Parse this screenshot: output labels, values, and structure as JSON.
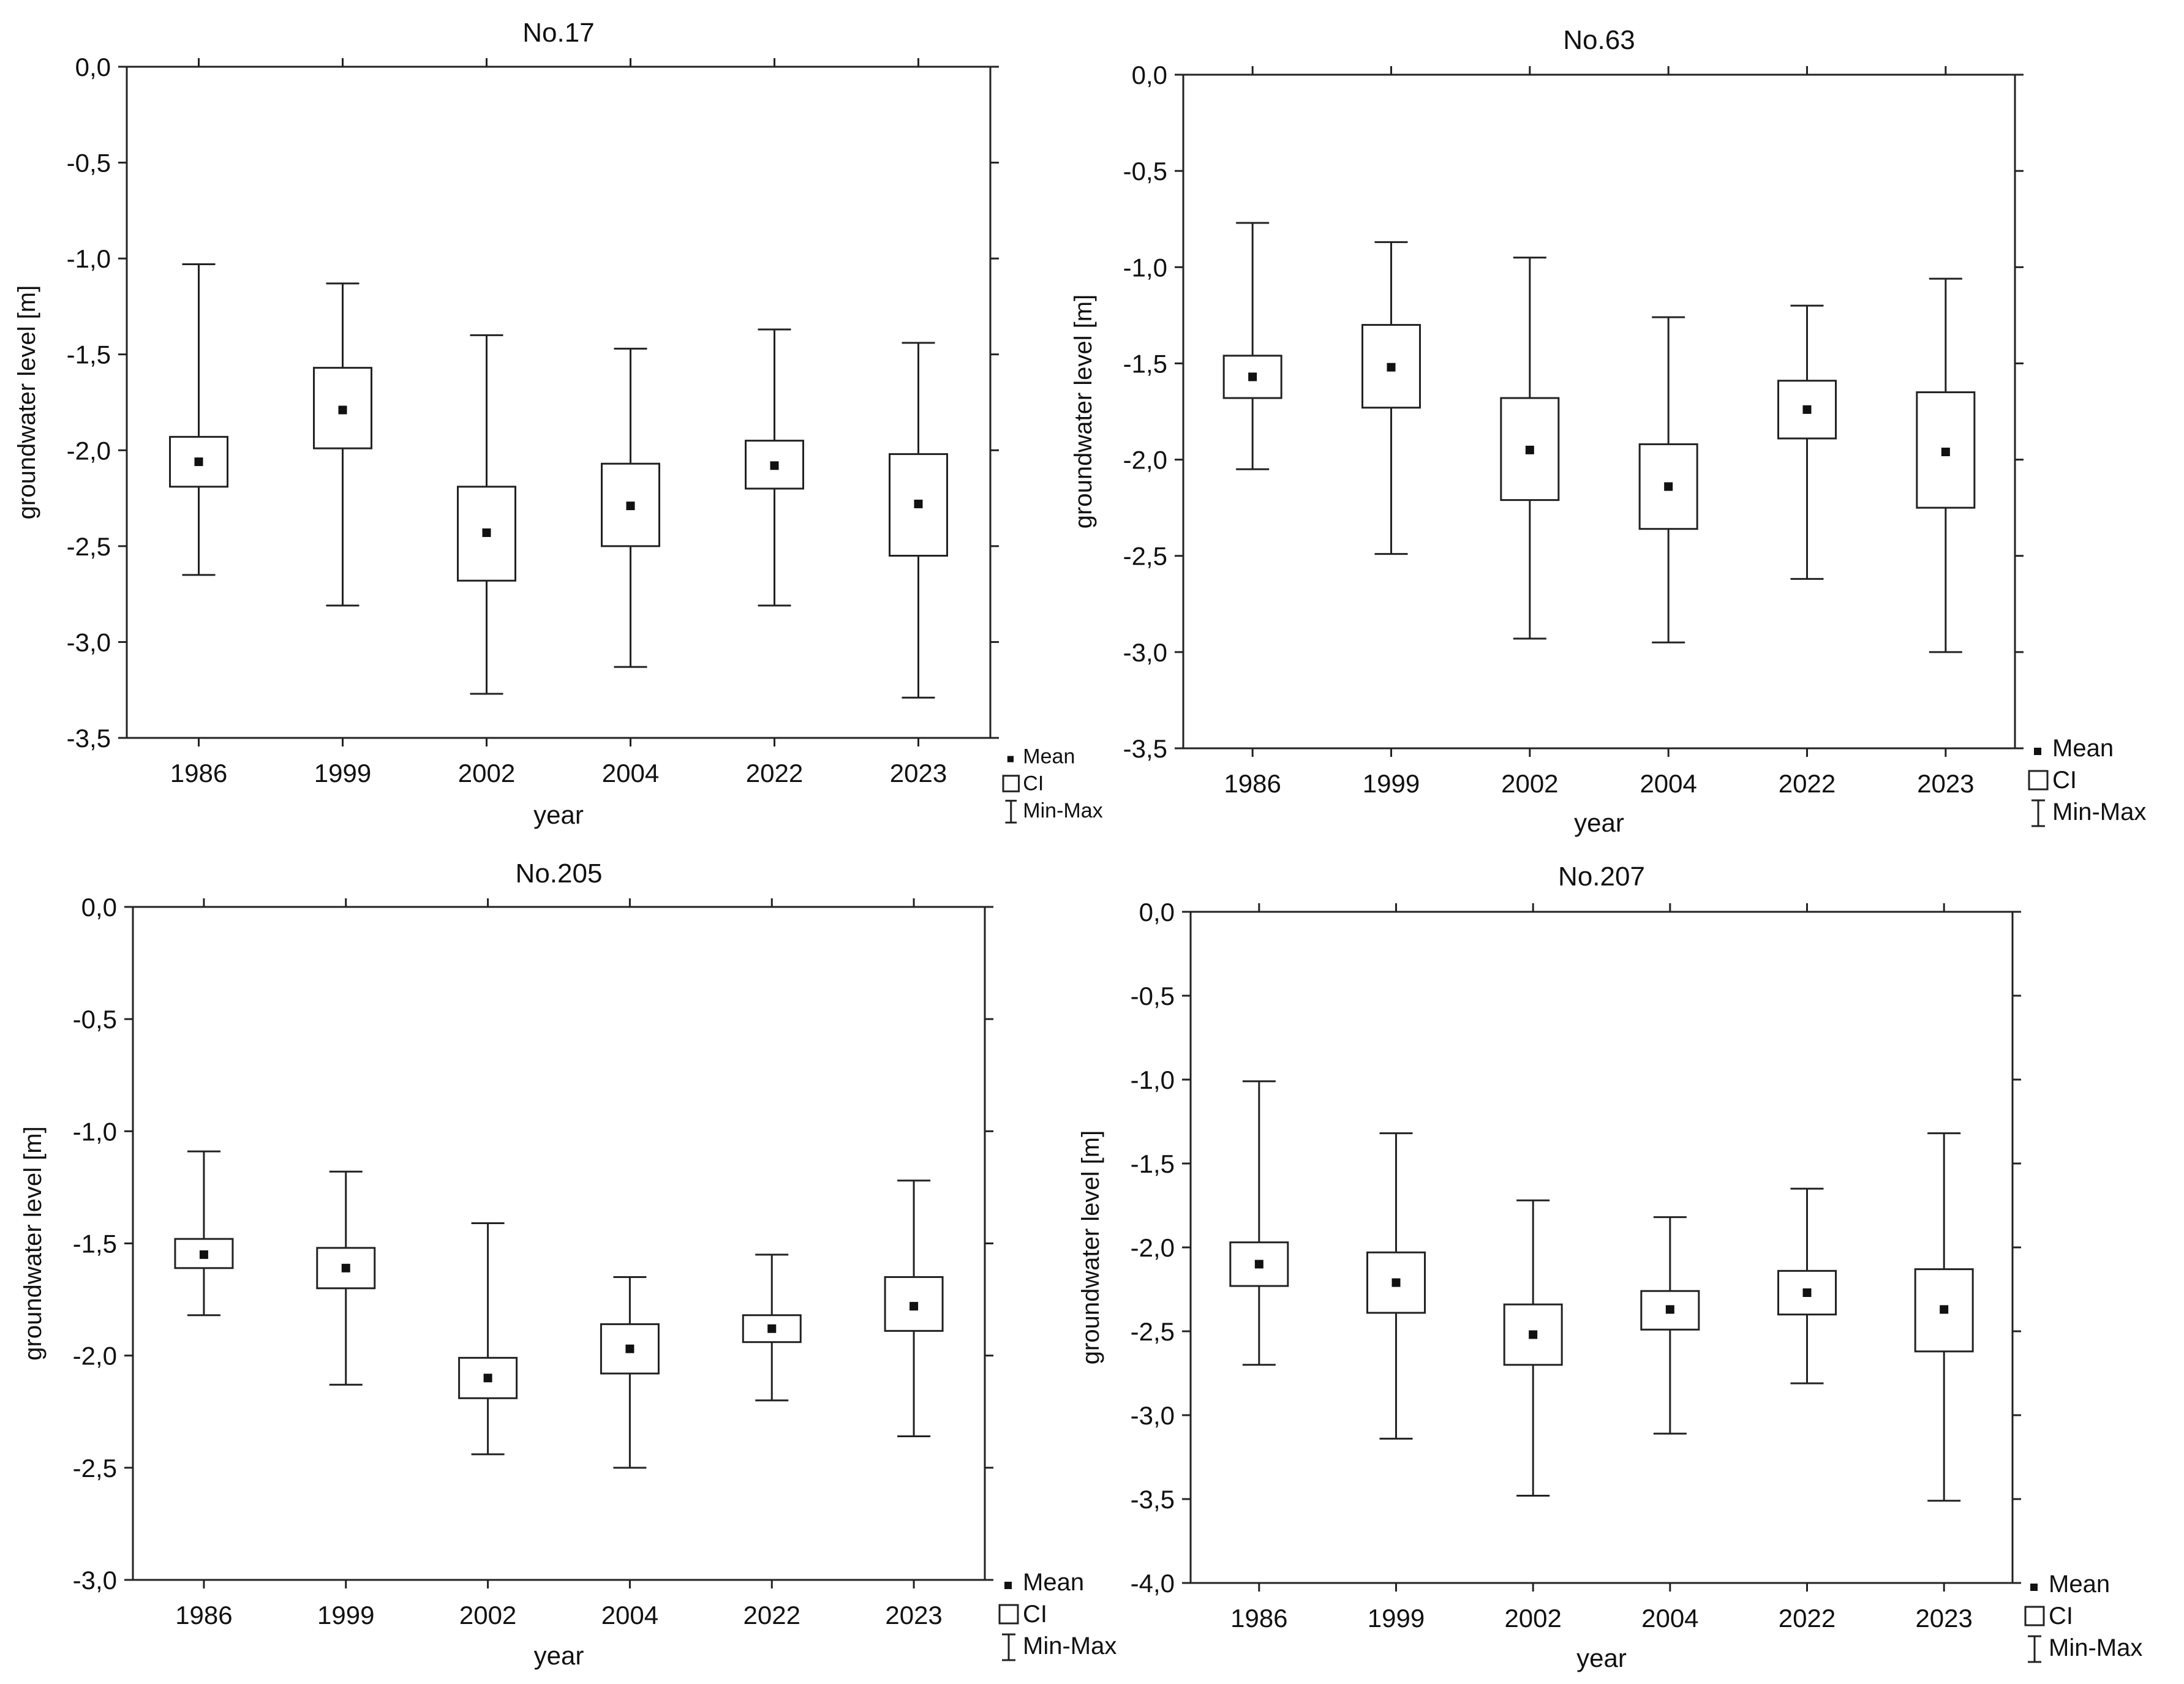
{
  "chart_data": [
    {
      "type": "box",
      "title": "No.17",
      "xlabel": "year",
      "ylabel": "groundwater level [m]",
      "categories": [
        "1986",
        "1999",
        "2002",
        "2004",
        "2022",
        "2023"
      ],
      "ylim": [
        -3.5,
        0.0
      ],
      "yticks": [
        "0,0",
        "-0,5",
        "-1,0",
        "-1,5",
        "-2,0",
        "-2,5",
        "-3,0",
        "-3,5"
      ],
      "grid": false,
      "legend": {
        "position": "right-bottom",
        "mean": "Mean",
        "ci": "CI",
        "minmax": "Min-Max"
      },
      "series": [
        {
          "mean": -2.06,
          "ci_low": -2.19,
          "ci_high": -1.93,
          "min": -2.65,
          "max": -1.03
        },
        {
          "mean": -1.79,
          "ci_low": -1.99,
          "ci_high": -1.57,
          "min": -2.81,
          "max": -1.13
        },
        {
          "mean": -2.43,
          "ci_low": -2.68,
          "ci_high": -2.19,
          "min": -3.27,
          "max": -1.4
        },
        {
          "mean": -2.29,
          "ci_low": -2.5,
          "ci_high": -2.07,
          "min": -3.13,
          "max": -1.47
        },
        {
          "mean": -2.08,
          "ci_low": -2.2,
          "ci_high": -1.95,
          "min": -2.81,
          "max": -1.37
        },
        {
          "mean": -2.28,
          "ci_low": -2.55,
          "ci_high": -2.02,
          "min": -3.29,
          "max": -1.44
        }
      ]
    },
    {
      "type": "box",
      "title": "No.63",
      "xlabel": "year",
      "ylabel": "groundwater level [m]",
      "categories": [
        "1986",
        "1999",
        "2002",
        "2004",
        "2022",
        "2023"
      ],
      "ylim": [
        -3.5,
        0.0
      ],
      "yticks": [
        "0,0",
        "-0,5",
        "-1,0",
        "-1,5",
        "-2,0",
        "-2,5",
        "-3,0",
        "-3,5"
      ],
      "grid": false,
      "legend": {
        "position": "right-bottom",
        "mean": "Mean",
        "ci": "CI",
        "minmax": "Min-Max"
      },
      "series": [
        {
          "mean": -1.57,
          "ci_low": -1.68,
          "ci_high": -1.46,
          "min": -2.05,
          "max": -0.77
        },
        {
          "mean": -1.52,
          "ci_low": -1.73,
          "ci_high": -1.3,
          "min": -2.49,
          "max": -0.87
        },
        {
          "mean": -1.95,
          "ci_low": -2.21,
          "ci_high": -1.68,
          "min": -2.93,
          "max": -0.95
        },
        {
          "mean": -2.14,
          "ci_low": -2.36,
          "ci_high": -1.92,
          "min": -2.95,
          "max": -1.26
        },
        {
          "mean": -1.74,
          "ci_low": -1.89,
          "ci_high": -1.59,
          "min": -2.62,
          "max": -1.2
        },
        {
          "mean": -1.96,
          "ci_low": -2.25,
          "ci_high": -1.65,
          "min": -3.0,
          "max": -1.06
        }
      ]
    },
    {
      "type": "box",
      "title": "No.205",
      "xlabel": "year",
      "ylabel": "groundwater level [m]",
      "categories": [
        "1986",
        "1999",
        "2002",
        "2004",
        "2022",
        "2023"
      ],
      "ylim": [
        -3.0,
        0.0
      ],
      "yticks": [
        "0,0",
        "-0,5",
        "-1,0",
        "-1,5",
        "-2,0",
        "-2,5",
        "-3,0"
      ],
      "grid": false,
      "legend": {
        "position": "right-bottom",
        "mean": "Mean",
        "ci": "CI",
        "minmax": "Min-Max"
      },
      "series": [
        {
          "mean": -1.55,
          "ci_low": -1.61,
          "ci_high": -1.48,
          "min": -1.82,
          "max": -1.09
        },
        {
          "mean": -1.61,
          "ci_low": -1.7,
          "ci_high": -1.52,
          "min": -2.13,
          "max": -1.18
        },
        {
          "mean": -2.1,
          "ci_low": -2.19,
          "ci_high": -2.01,
          "min": -2.44,
          "max": -1.41
        },
        {
          "mean": -1.97,
          "ci_low": -2.08,
          "ci_high": -1.86,
          "min": -2.5,
          "max": -1.65
        },
        {
          "mean": -1.88,
          "ci_low": -1.94,
          "ci_high": -1.82,
          "min": -2.2,
          "max": -1.55
        },
        {
          "mean": -1.78,
          "ci_low": -1.89,
          "ci_high": -1.65,
          "min": -2.36,
          "max": -1.22
        }
      ]
    },
    {
      "type": "box",
      "title": "No.207",
      "xlabel": "year",
      "ylabel": "groundwater level [m]",
      "categories": [
        "1986",
        "1999",
        "2002",
        "2004",
        "2022",
        "2023"
      ],
      "ylim": [
        -4.0,
        0.0
      ],
      "yticks": [
        "0,0",
        "-0,5",
        "-1,0",
        "-1,5",
        "-2,0",
        "-2,5",
        "-3,0",
        "-3,5",
        "-4,0"
      ],
      "grid": false,
      "legend": {
        "position": "right-bottom",
        "mean": "Mean",
        "ci": "CI",
        "minmax": "Min-Max"
      },
      "series": [
        {
          "mean": -2.1,
          "ci_low": -2.23,
          "ci_high": -1.97,
          "min": -2.7,
          "max": -1.01
        },
        {
          "mean": -2.21,
          "ci_low": -2.39,
          "ci_high": -2.03,
          "min": -3.14,
          "max": -1.32
        },
        {
          "mean": -2.52,
          "ci_low": -2.7,
          "ci_high": -2.34,
          "min": -3.48,
          "max": -1.72
        },
        {
          "mean": -2.37,
          "ci_low": -2.49,
          "ci_high": -2.26,
          "min": -3.11,
          "max": -1.82
        },
        {
          "mean": -2.27,
          "ci_low": -2.4,
          "ci_high": -2.14,
          "min": -2.81,
          "max": -1.65
        },
        {
          "mean": -2.37,
          "ci_low": -2.62,
          "ci_high": -2.13,
          "min": -3.51,
          "max": -1.32
        }
      ]
    }
  ]
}
